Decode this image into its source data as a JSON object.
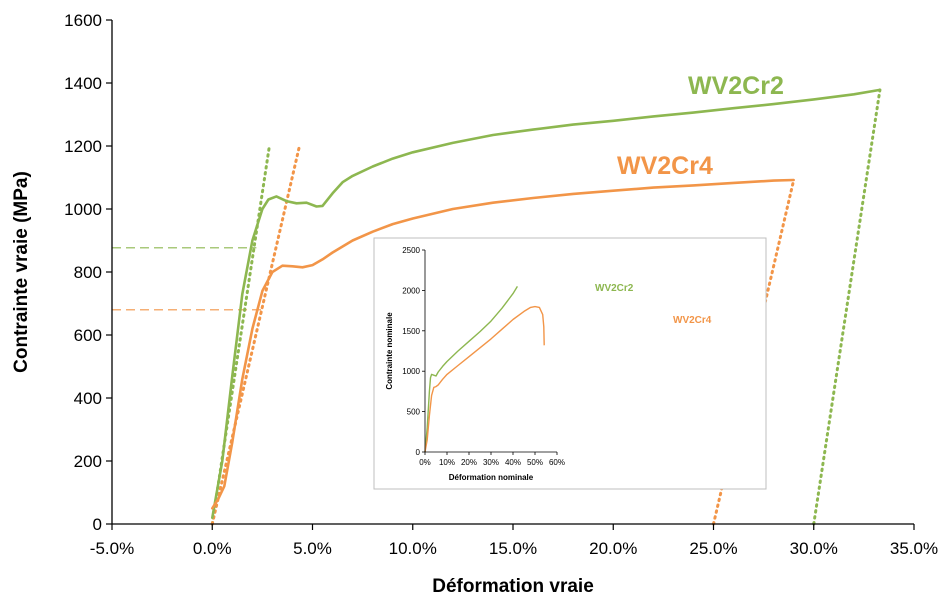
{
  "chart_data": [
    {
      "type": "line",
      "title": "",
      "xlabel": "Déformation vraie",
      "ylabel": "Contrainte vraie (MPa)",
      "xlim": [
        -0.05,
        0.35
      ],
      "ylim": [
        0,
        1600
      ],
      "x_tick_labels": [
        "-5.0%",
        "0.0%",
        "5.0%",
        "10.0%",
        "15.0%",
        "20.0%",
        "25.0%",
        "30.0%",
        "35.0%"
      ],
      "y_tick_labels": [
        "0",
        "200",
        "400",
        "600",
        "800",
        "1000",
        "1200",
        "1400",
        "1600"
      ],
      "grid": false,
      "colors": {
        "WV2Cr2": "#8DB750",
        "WV2Cr4": "#F29548"
      },
      "series": [
        {
          "name": "WV2Cr2",
          "color": "#8DB750",
          "x": [
            0.0,
            0.005,
            0.01,
            0.015,
            0.02,
            0.025,
            0.028,
            0.032,
            0.037,
            0.042,
            0.047,
            0.052,
            0.055,
            0.06,
            0.065,
            0.07,
            0.08,
            0.09,
            0.1,
            0.12,
            0.14,
            0.16,
            0.18,
            0.2,
            0.22,
            0.24,
            0.26,
            0.28,
            0.3,
            0.32,
            0.333
          ],
          "y": [
            20,
            200,
            470,
            730,
            900,
            1000,
            1030,
            1040,
            1025,
            1018,
            1020,
            1008,
            1010,
            1050,
            1085,
            1105,
            1135,
            1160,
            1180,
            1210,
            1235,
            1252,
            1268,
            1280,
            1294,
            1306,
            1320,
            1333,
            1348,
            1364,
            1378
          ]
        },
        {
          "name": "WV2Cr4",
          "color": "#F29548",
          "x": [
            0.0,
            0.003,
            0.006,
            0.01,
            0.015,
            0.02,
            0.025,
            0.03,
            0.035,
            0.04,
            0.045,
            0.05,
            0.055,
            0.06,
            0.07,
            0.08,
            0.09,
            0.1,
            0.12,
            0.14,
            0.16,
            0.18,
            0.2,
            0.22,
            0.24,
            0.26,
            0.28,
            0.29
          ],
          "y": [
            50,
            80,
            120,
            260,
            460,
            620,
            740,
            800,
            820,
            818,
            815,
            822,
            840,
            862,
            900,
            928,
            952,
            970,
            1000,
            1020,
            1035,
            1048,
            1058,
            1068,
            1075,
            1083,
            1090,
            1092
          ]
        }
      ],
      "elastic_lines": [
        {
          "series": "WV2Cr2",
          "x": [
            0.0,
            0.0285
          ],
          "y": [
            0,
            1200
          ],
          "style": "dotted"
        },
        {
          "series": "WV2Cr4",
          "x": [
            0.0,
            0.0435
          ],
          "y": [
            0,
            1200
          ],
          "style": "dotted"
        },
        {
          "series": "WV2Cr2",
          "x": [
            0.3,
            0.333
          ],
          "y": [
            0,
            1378
          ],
          "style": "dotted"
        },
        {
          "series": "WV2Cr4",
          "x": [
            0.25,
            0.29
          ],
          "y": [
            0,
            1092
          ],
          "style": "dotted"
        }
      ],
      "yield_lines": [
        {
          "series": "WV2Cr2",
          "y": 877,
          "x": [
            -0.05,
            0.022
          ],
          "style": "dashed"
        },
        {
          "series": "WV2Cr4",
          "y": 680,
          "x": [
            -0.05,
            0.025
          ],
          "style": "dashed"
        }
      ],
      "series_labels": [
        {
          "text": "WV2Cr2",
          "series": "WV2Cr2"
        },
        {
          "text": "WV2Cr4",
          "series": "WV2Cr4"
        }
      ]
    },
    {
      "type": "line",
      "title": "",
      "xlabel": "Déformation nominale",
      "ylabel": "Contrainte nominale",
      "xlim": [
        0,
        0.6
      ],
      "ylim": [
        0,
        2500
      ],
      "x_tick_labels": [
        "0%",
        "10%",
        "20%",
        "30%",
        "40%",
        "50%",
        "60%"
      ],
      "y_tick_labels": [
        "0",
        "500",
        "1000",
        "1500",
        "2000",
        "2500"
      ],
      "grid": false,
      "series": [
        {
          "name": "WV2Cr2",
          "color": "#8DB750",
          "x": [
            0.0,
            0.01,
            0.02,
            0.025,
            0.03,
            0.04,
            0.05,
            0.06,
            0.08,
            0.1,
            0.15,
            0.2,
            0.25,
            0.3,
            0.35,
            0.4,
            0.42
          ],
          "y": [
            0,
            300,
            750,
            920,
            960,
            950,
            940,
            990,
            1060,
            1120,
            1250,
            1370,
            1490,
            1620,
            1780,
            1960,
            2050
          ]
        },
        {
          "name": "WV2Cr4",
          "color": "#F29548",
          "x": [
            0.0,
            0.01,
            0.02,
            0.03,
            0.04,
            0.05,
            0.06,
            0.08,
            0.1,
            0.15,
            0.2,
            0.25,
            0.3,
            0.35,
            0.4,
            0.45,
            0.48,
            0.5,
            0.52,
            0.535,
            0.54,
            0.542
          ],
          "y": [
            0,
            150,
            450,
            700,
            800,
            810,
            830,
            900,
            960,
            1070,
            1180,
            1290,
            1400,
            1520,
            1640,
            1740,
            1790,
            1800,
            1790,
            1700,
            1550,
            1320
          ]
        }
      ],
      "series_labels": [
        {
          "text": "WV2Cr2",
          "series": "WV2Cr2"
        },
        {
          "text": "WV2Cr4",
          "series": "WV2Cr4"
        }
      ]
    }
  ]
}
